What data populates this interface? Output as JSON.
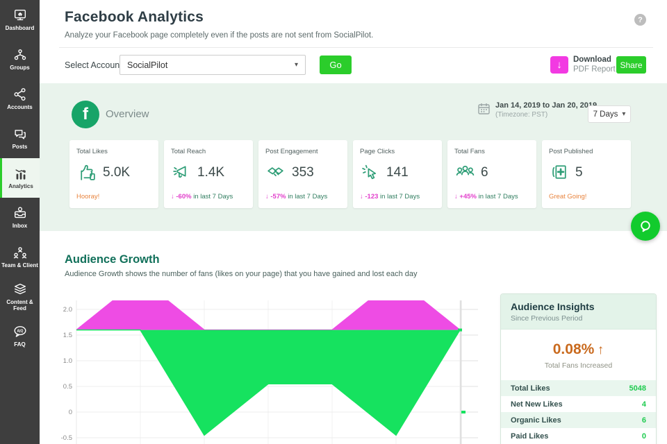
{
  "colors": {
    "accent_green": "#2bcd2b",
    "brand_green": "#17a468",
    "stat_icon_green": "#2f9e77",
    "magenta": "#f23ae2",
    "chart_pink": "#ee4ce4",
    "chart_green": "#16e25f",
    "praise_orange": "#e8833d",
    "section_bg": "#e9f3ec",
    "sidebar_bg": "#3e3e3e"
  },
  "glyphs": {
    "caret_down": "▾",
    "down_arrow": "↓",
    "help": "?",
    "fb": "f",
    "faq_badge": "A|Q"
  },
  "sidebar": {
    "items": [
      {
        "label": "Dashboard"
      },
      {
        "label": "Groups"
      },
      {
        "label": "Accounts"
      },
      {
        "label": "Posts"
      },
      {
        "label": "Analytics",
        "active": true
      },
      {
        "label": "Inbox"
      },
      {
        "label": "Team & Client"
      },
      {
        "label": "Content & Feed"
      },
      {
        "label": "FAQ"
      }
    ]
  },
  "header": {
    "title": "Facebook Analytics",
    "subtitle": "Analyze your Facebook page completely even if the posts are not sent from SocialPilot.",
    "select_account_label": "Select Account:",
    "account_value": "SocialPilot",
    "go_label": "Go",
    "download_label_1": "Download",
    "download_label_2": "PDF Report",
    "share_label": "Share"
  },
  "overview": {
    "title": "Overview",
    "date_range": "Jan 14, 2019 to Jan 20, 2019",
    "timezone": "(Timezone: PST)",
    "period_label": "7 Days",
    "cards": [
      {
        "label": "Total Likes",
        "value": "5.0K",
        "note": "Hooray!"
      },
      {
        "label": "Total Reach",
        "value": "1.4K",
        "arrow": "↓",
        "delta": "-60%",
        "note": "in last 7 Days"
      },
      {
        "label": "Post Engagement",
        "value": "353",
        "arrow": "↓",
        "delta": "-57%",
        "note": "in last 7 Days"
      },
      {
        "label": "Page Clicks",
        "value": "141",
        "arrow": "↓",
        "delta": "-123",
        "note": "in last 7 Days"
      },
      {
        "label": "Total Fans",
        "value": "6",
        "arrow": "↓",
        "delta": "+45%",
        "note": "in last 7 Days"
      },
      {
        "label": "Post Published",
        "value": "5",
        "note": "Great Going!"
      }
    ]
  },
  "audience_growth": {
    "title": "Audience Growth",
    "subtitle": "Audience Growth shows the number of fans (likes on your page) that you have gained and lost each day"
  },
  "chart_data": {
    "type": "area",
    "title": "Audience Growth",
    "x_points": 7,
    "x_tick_labels_visible": false,
    "date_range": "Jan 14, 2019 to Jan 20, 2019",
    "ylim_visible": [
      -0.6,
      2.17
    ],
    "baseline": 1.6,
    "grid": true,
    "y_ticks": [
      {
        "v": 2,
        "label": "2.0"
      },
      {
        "v": 1.5,
        "label": "1.5"
      },
      {
        "v": 1,
        "label": "1.0"
      },
      {
        "v": 0.5,
        "label": "0.5"
      },
      {
        "v": 0,
        "label": "0"
      },
      {
        "v": -0.5,
        "label": "-0.5"
      }
    ],
    "series": [
      {
        "name": "upper-magenta-area",
        "color": "#ee4ce4",
        "clipped_at_top": true,
        "values": [
          1.6,
          2.6,
          1.6,
          1.6,
          1.6,
          2.6,
          1.6
        ]
      },
      {
        "name": "lower-green-area",
        "color": "#16e25f",
        "values": [
          1.6,
          1.6,
          -0.45,
          0.55,
          0.55,
          -0.45,
          1.6
        ]
      }
    ]
  },
  "insights": {
    "title": "Audience Insights",
    "subtitle": "Since Previous Period",
    "highlight_value": "0.08%",
    "highlight_arrow": "↑",
    "highlight_caption": "Total Fans Increased",
    "rows": [
      {
        "label": "Total Likes",
        "value": "5048"
      },
      {
        "label": "Net New Likes",
        "value": "4"
      },
      {
        "label": "Organic Likes",
        "value": "6"
      },
      {
        "label": "Paid Likes",
        "value": "0"
      }
    ]
  }
}
